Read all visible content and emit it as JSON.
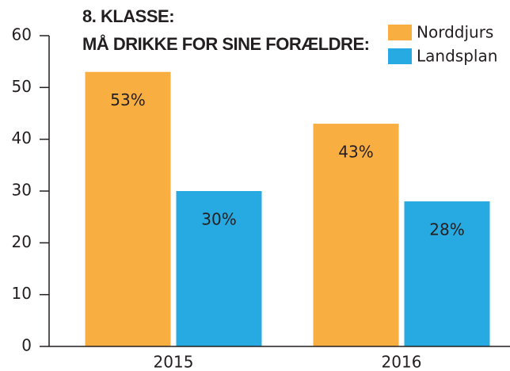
{
  "chart_data": {
    "type": "bar",
    "title": "8. KLASSE:",
    "subtitle": "MÅ DRIKKE FOR SINE FORÆLDRE:",
    "categories": [
      "2015",
      "2016"
    ],
    "series": [
      {
        "name": "Norddjurs",
        "color": "#f9ae42",
        "values": [
          53,
          43
        ],
        "value_labels": [
          "53%",
          "43%"
        ]
      },
      {
        "name": "Landsplan",
        "color": "#27a9e1",
        "values": [
          30,
          28
        ],
        "value_labels": [
          "30%",
          "28%"
        ]
      }
    ],
    "ylim": [
      0,
      60
    ],
    "yticks": [
      0,
      10,
      20,
      30,
      40,
      50,
      60
    ],
    "legend": "top-right"
  }
}
